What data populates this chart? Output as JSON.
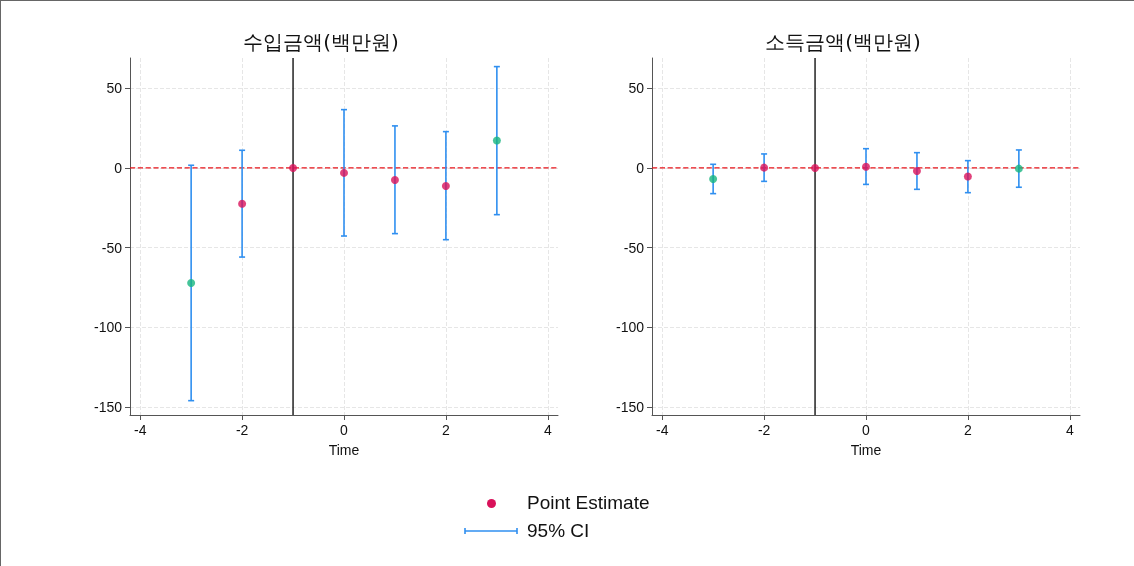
{
  "chart_data": [
    {
      "type": "scatter",
      "title": "수입금액(백만원)",
      "xlabel": "Time",
      "x": [
        -3,
        -2,
        -1,
        0,
        1,
        2,
        3
      ],
      "series": [
        {
          "name": "Point Estimate",
          "color": "#d9115a",
          "colors": [
            "#17b57f",
            "#d9115a",
            "#d9115a",
            "#d9115a",
            "#d9115a",
            "#d9115a",
            "#17b57f"
          ],
          "values": [
            -72.2,
            -22.4,
            0,
            -3.1,
            -7.5,
            -11.3,
            17.2
          ],
          "errors": [
            [
              -146,
              1.7
            ],
            [
              -55.9,
              11.1
            ],
            null,
            [
              -42.7,
              36.6
            ],
            [
              -41.2,
              26.4
            ],
            [
              -45,
              22.8
            ],
            [
              -29.3,
              63.6
            ]
          ]
        }
      ],
      "xlim": [
        -4.2,
        4.2
      ],
      "xticks": [
        -4,
        -2,
        0,
        2,
        4
      ],
      "ylim": [
        -155,
        69
      ],
      "yticks": [
        -150,
        -100,
        -50,
        0,
        50
      ],
      "grid": true,
      "marker": "circle",
      "legend": "bottom",
      "annotations": [
        "95% CI"
      ],
      "ref_lines": [
        {
          "axis": "y",
          "value": 0,
          "color": "#e8141b",
          "line_style": "dashed"
        },
        {
          "axis": "x",
          "value": -1,
          "color": "#000000",
          "line_style": "solid"
        }
      ]
    },
    {
      "type": "scatter",
      "title": "소득금액(백만원)",
      "xlabel": "Time",
      "x": [
        -3,
        -2,
        -1,
        0,
        1,
        2,
        3
      ],
      "series": [
        {
          "color": "#d9115a",
          "colors": [
            "#17b57f",
            "#d9115a",
            "#d9115a",
            "#d9115a",
            "#d9115a",
            "#d9115a",
            "#17b57f"
          ],
          "values": [
            -6.9,
            0.2,
            0,
            0.8,
            -1.9,
            -5.4,
            -0.4
          ],
          "errors": [
            [
              -16.1,
              2.3
            ],
            [
              -8.4,
              8.8
            ],
            null,
            [
              -10.3,
              12.1
            ],
            [
              -13.4,
              9.6
            ],
            [
              -15.5,
              4.6
            ],
            [
              -12.1,
              11.3
            ]
          ]
        }
      ],
      "xlim": [
        -4.2,
        4.2
      ],
      "xticks": [
        -4,
        -2,
        0,
        2,
        4
      ],
      "ylim": [
        -155,
        69
      ],
      "yticks": [
        -150,
        -100,
        -50,
        0,
        50
      ],
      "grid": true,
      "marker": "circle",
      "ref_lines": [
        {
          "axis": "y",
          "value": 0,
          "color": "#e8141b",
          "line_style": "dashed"
        },
        {
          "axis": "x",
          "value": -1,
          "color": "#000000",
          "line_style": "solid"
        }
      ]
    }
  ]
}
